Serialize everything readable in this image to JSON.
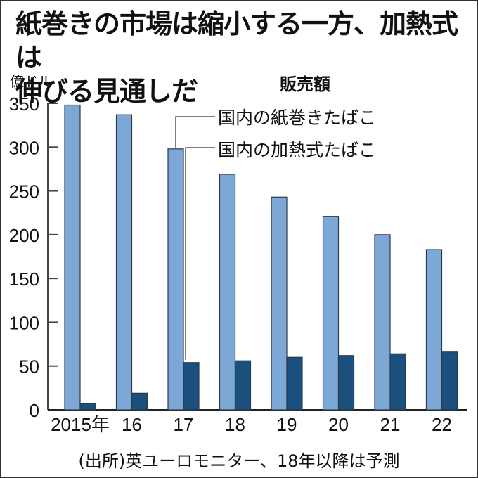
{
  "title": "紙巻きの市場は縮小する一方、加熱式は伸びる見通しだ",
  "title_line1": "紙巻きの市場は縮小する一方、加熱式は",
  "title_line2": "伸びる見通しだ",
  "unit_label": "億ドル",
  "legend_title": "販売額",
  "legend": [
    {
      "label": "国内の紙巻きたばこ",
      "color": "#7da7d4"
    },
    {
      "label": "国内の加熱式たばこ",
      "color": "#1b4f7e"
    }
  ],
  "source": "(出所)英ユーロモニター、18年以降は予測",
  "chart_data": {
    "type": "bar",
    "title": "紙巻きの市場は縮小する一方、加熱式は伸びる見通しだ",
    "subtitle": "販売額",
    "xlabel": "",
    "ylabel": "億ドル",
    "categories": [
      "2015年",
      "16",
      "17",
      "18",
      "19",
      "20",
      "21",
      "22"
    ],
    "series": [
      {
        "name": "国内の紙巻きたばこ",
        "color": "#7da7d4",
        "values": [
          348,
          337,
          298,
          269,
          243,
          221,
          200,
          183
        ]
      },
      {
        "name": "国内の加熱式たばこ",
        "color": "#1b4f7e",
        "values": [
          7,
          19,
          54,
          56,
          60,
          62,
          64,
          66
        ]
      }
    ],
    "yticks": [
      0,
      50,
      100,
      150,
      200,
      250,
      300,
      350
    ],
    "ylim": [
      0,
      350
    ],
    "grid": false,
    "legend_position": "top-right (callout lines)",
    "annotations": [
      "(出所)英ユーロモニター、18年以降は予測"
    ]
  }
}
